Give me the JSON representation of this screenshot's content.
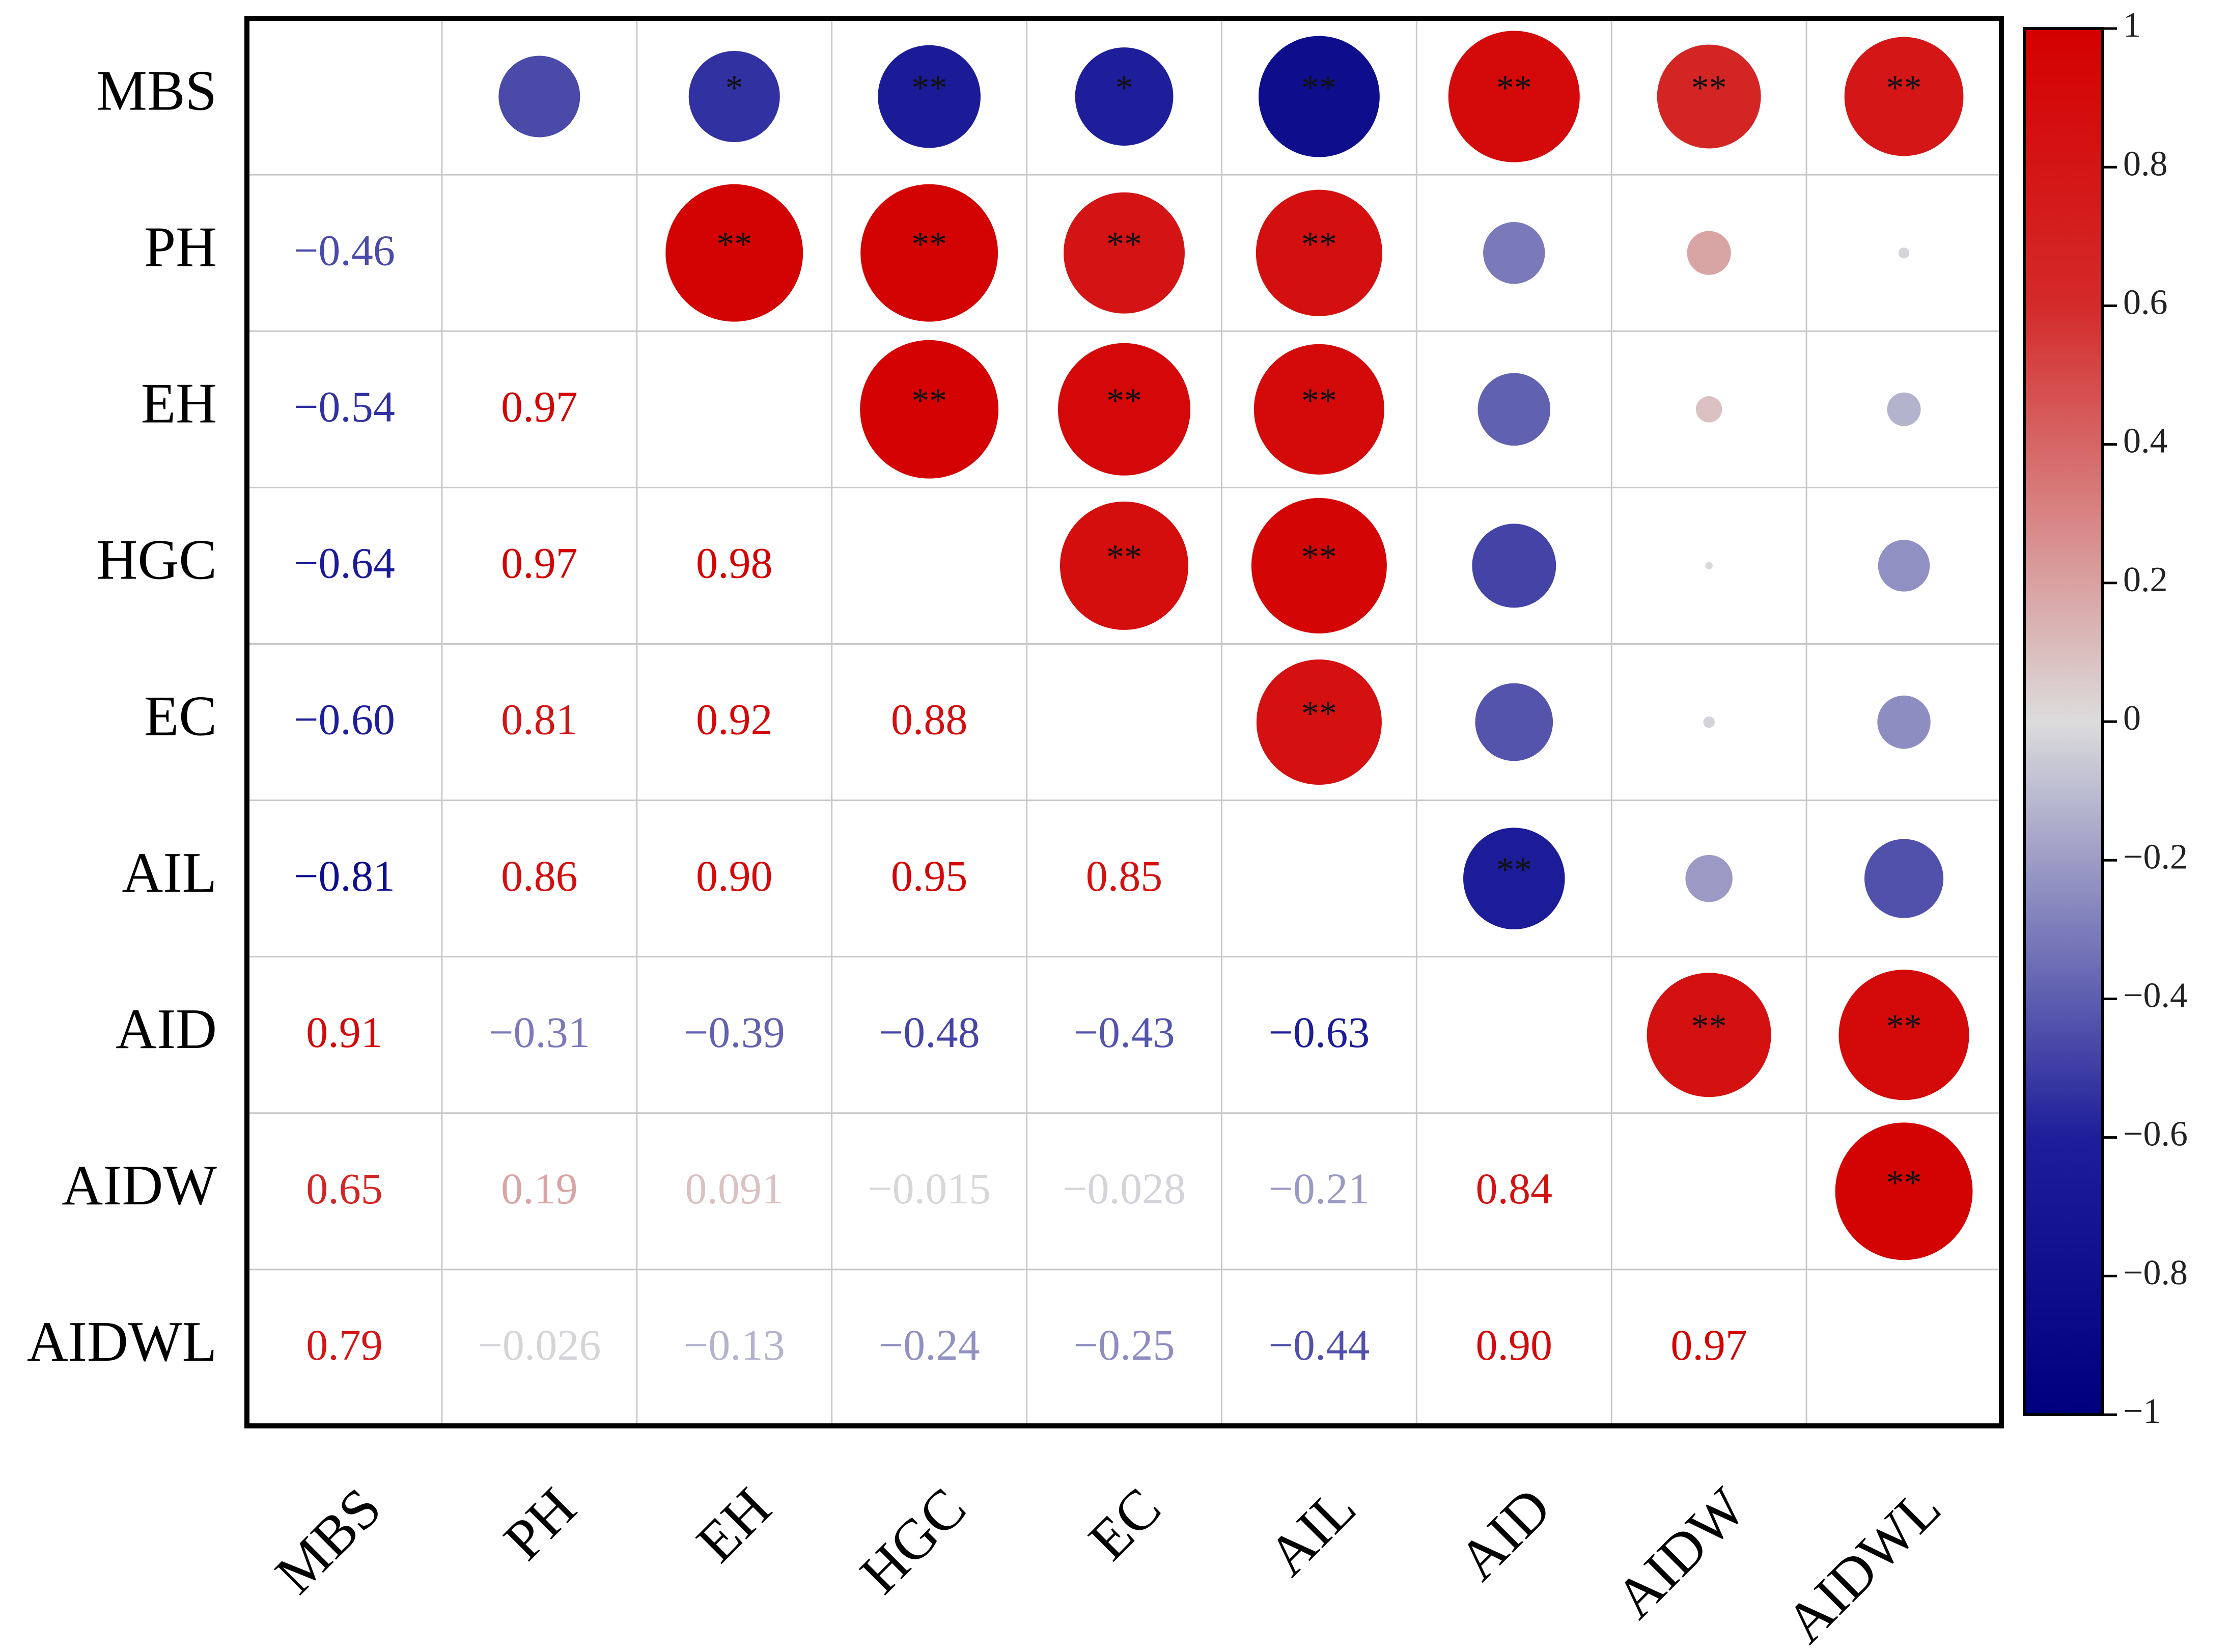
{
  "chart_data": {
    "type": "correlation",
    "variables": [
      "MBS",
      "PH",
      "EH",
      "HGC",
      "EC",
      "AIL",
      "AID",
      "AIDW",
      "AIDWL"
    ],
    "values": [
      [],
      [
        -0.46
      ],
      [
        -0.54,
        0.97
      ],
      [
        -0.64,
        0.97,
        0.98
      ],
      [
        -0.6,
        0.81,
        0.92,
        0.88
      ],
      [
        -0.81,
        0.86,
        0.9,
        0.95,
        0.85
      ],
      [
        0.91,
        -0.31,
        -0.39,
        -0.48,
        -0.43,
        -0.63
      ],
      [
        0.65,
        0.19,
        0.091,
        -0.015,
        -0.028,
        -0.21,
        0.84
      ],
      [
        0.79,
        -0.026,
        -0.13,
        -0.24,
        -0.25,
        -0.44,
        0.9,
        0.97
      ]
    ],
    "value_labels": [
      [],
      [
        "−0.46"
      ],
      [
        "−0.54",
        "0.97"
      ],
      [
        "−0.64",
        "0.97",
        "0.98"
      ],
      [
        "−0.60",
        "0.81",
        "0.92",
        "0.88"
      ],
      [
        "−0.81",
        "0.86",
        "0.90",
        "0.95",
        "0.85"
      ],
      [
        "0.91",
        "−0.31",
        "−0.39",
        "−0.48",
        "−0.43",
        "−0.63"
      ],
      [
        "0.65",
        "0.19",
        "0.091",
        "−0.015",
        "−0.028",
        "−0.21",
        "0.84"
      ],
      [
        "0.79",
        "−0.026",
        "−0.13",
        "−0.24",
        "−0.25",
        "−0.44",
        "0.90",
        "0.97"
      ]
    ],
    "significance": [
      [],
      [
        null
      ],
      [
        "*",
        "**"
      ],
      [
        "**",
        "**",
        "**"
      ],
      [
        "*",
        "**",
        "**",
        "**"
      ],
      [
        "**",
        "**",
        "**",
        "**",
        "**"
      ],
      [
        "**",
        null,
        null,
        null,
        null,
        "**"
      ],
      [
        "**",
        null,
        null,
        null,
        null,
        null,
        "**"
      ],
      [
        "**",
        null,
        null,
        null,
        null,
        null,
        "**",
        "**"
      ]
    ],
    "colorscale": [
      [
        -1,
        "#00007f"
      ],
      [
        -0.6,
        "#1e1e9a"
      ],
      [
        0,
        "#dcdcdc"
      ],
      [
        0.6,
        "#d42a2a"
      ],
      [
        1,
        "#d40000"
      ]
    ],
    "clim": [
      -1,
      1
    ],
    "cticks": [
      {
        "value": -1,
        "label": "−1"
      },
      {
        "value": -0.8,
        "label": "−0.8"
      },
      {
        "value": -0.6,
        "label": "−0.6"
      },
      {
        "value": -0.4,
        "label": "−0.4"
      },
      {
        "value": -0.2,
        "label": "−0.2"
      },
      0,
      {
        "value": 0.2,
        "label": "0.2"
      },
      {
        "value": 0.4,
        "label": "0.4"
      },
      {
        "value": 0.6,
        "label": "0.6"
      },
      {
        "value": 0.8,
        "label": "0.8"
      },
      1
    ]
  }
}
